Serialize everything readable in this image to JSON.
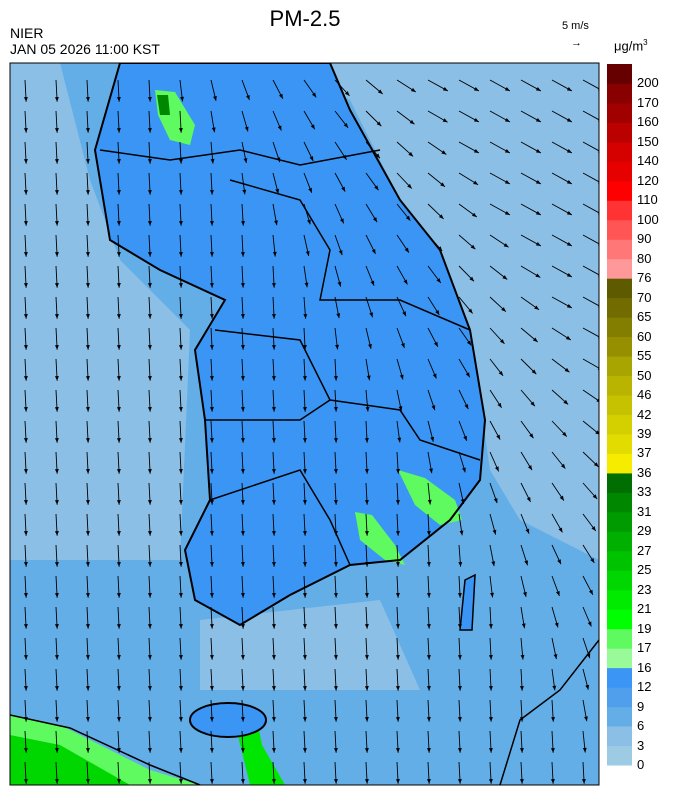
{
  "header": {
    "title": "PM-2.5",
    "organization": "NIER",
    "datetime": "JAN 05 2026 11:00 KST",
    "wind_reference": "5 m/s",
    "wind_reference_arrow": "→",
    "unit": "μg/m",
    "unit_exponent": "3"
  },
  "map": {
    "variable": "PM-2.5 concentration with wind vectors",
    "region": "Korean Peninsula"
  },
  "colorbar": {
    "labels": [
      "0",
      "3",
      "6",
      "9",
      "12",
      "16",
      "17",
      "19",
      "21",
      "23",
      "25",
      "27",
      "29",
      "31",
      "33",
      "36",
      "37",
      "39",
      "42",
      "46",
      "50",
      "55",
      "60",
      "65",
      "70",
      "76",
      "80",
      "90",
      "100",
      "110",
      "120",
      "140",
      "150",
      "160",
      "170",
      "200"
    ],
    "colors": [
      "#9ccbe3",
      "#8bbfe6",
      "#64aee8",
      "#4f9fec",
      "#3a95f5",
      "#99fa99",
      "#5ffa5f",
      "#00ff00",
      "#00eb00",
      "#00d700",
      "#00c300",
      "#00af00",
      "#009b00",
      "#008700",
      "#006e00",
      "#f5ec00",
      "#e2dc00",
      "#d4d000",
      "#c6c200",
      "#b8b400",
      "#a8a400",
      "#969000",
      "#847e00",
      "#726c00",
      "#5e5a00",
      "#ff9999",
      "#ff7777",
      "#ff5555",
      "#ff3333",
      "#ff0000",
      "#e60000",
      "#d50000",
      "#bb0000",
      "#a00000",
      "#880000",
      "#660000"
    ]
  }
}
